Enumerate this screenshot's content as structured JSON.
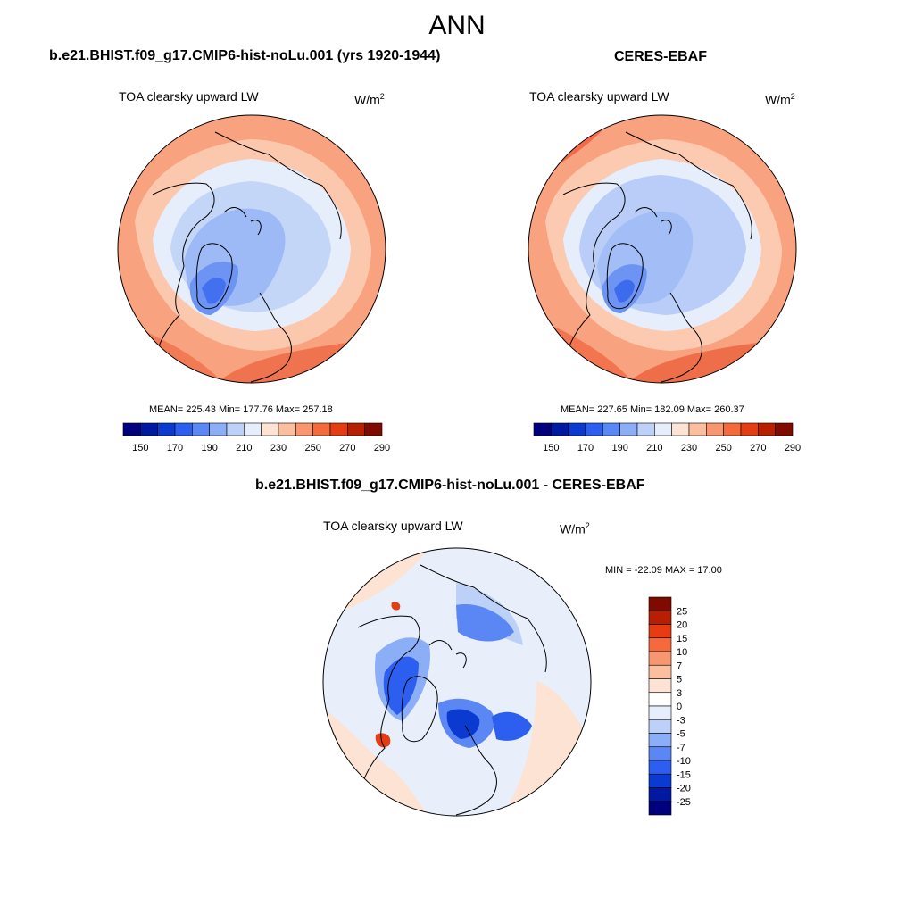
{
  "season": "ANN",
  "panels": {
    "model": {
      "title": "b.e21.BHIST.f09_g17.CMIP6-hist-noLu.001 (yrs 1920-1944)",
      "variable": "TOA clearsky upward LW",
      "units_base": "W/m",
      "units_exp": "2",
      "stats": "MEAN= 225.43  Min= 177.76  Max= 257.18"
    },
    "obs": {
      "title": "CERES-EBAF",
      "variable": "TOA clearsky upward LW",
      "units_base": "W/m",
      "units_exp": "2",
      "stats": "MEAN= 227.65  Min= 182.09  Max= 260.37"
    },
    "diff": {
      "title": "b.e21.BHIST.f09_g17.CMIP6-hist-noLu.001 - CERES-EBAF",
      "variable": "TOA clearsky upward LW",
      "units_base": "W/m",
      "units_exp": "2",
      "stats": "MIN = -22.09 MAX =  17.00"
    }
  },
  "colorbars": {
    "abs": {
      "labels": [
        "150",
        "170",
        "190",
        "210",
        "230",
        "250",
        "270",
        "290"
      ],
      "colors": [
        "#00007f",
        "#0019a0",
        "#0a3ad0",
        "#2c5ff0",
        "#5b87f4",
        "#8caef6",
        "#bcd0f8",
        "#e6eefb",
        "#fde3d3",
        "#fbbf9f",
        "#f89670",
        "#f56a3d",
        "#e53c12",
        "#b61f00",
        "#7f0a00"
      ]
    },
    "diff": {
      "labels": [
        "25",
        "20",
        "15",
        "10",
        "7",
        "5",
        "3",
        "0",
        "-3",
        "-5",
        "-7",
        "-10",
        "-15",
        "-20",
        "-25"
      ],
      "colors": [
        "#7f0a00",
        "#b61f00",
        "#e53c12",
        "#f56a3d",
        "#f89670",
        "#fbbf9f",
        "#fde3d3",
        "#ffffff",
        "#e6eefb",
        "#bcd0f8",
        "#8caef6",
        "#5b87f4",
        "#2c5ff0",
        "#0a3ad0",
        "#0019a0",
        "#00007f"
      ]
    }
  }
}
